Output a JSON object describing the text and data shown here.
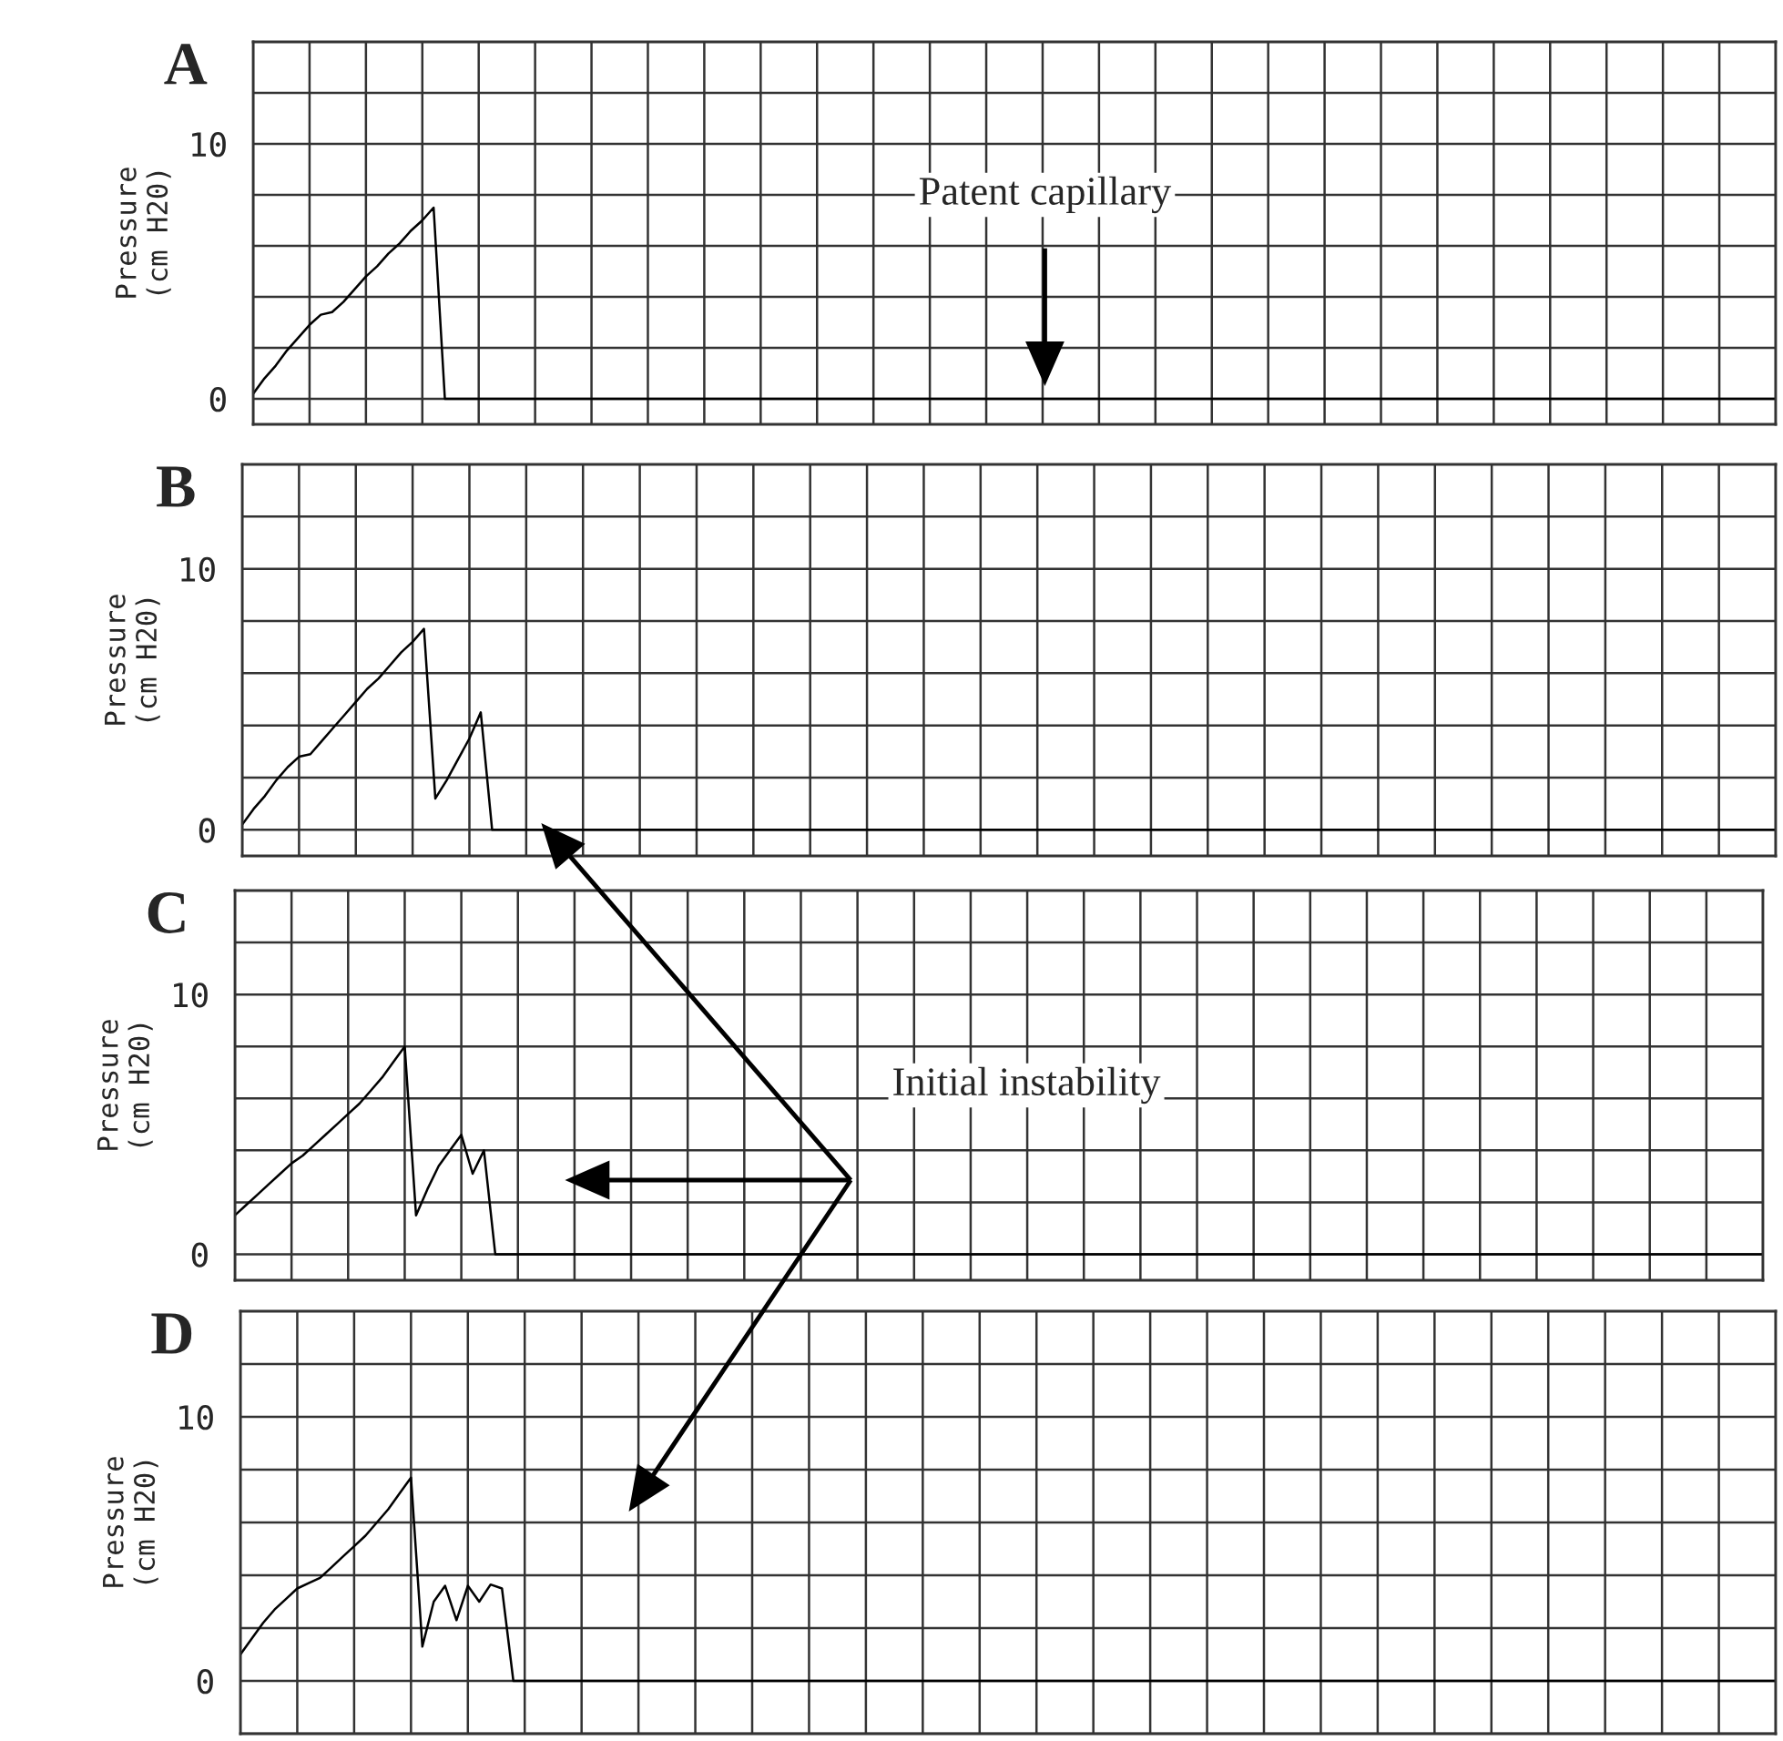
{
  "chart_data": [
    {
      "type": "line",
      "title": "A",
      "ylabel": "Pressure\n(cm H20)",
      "categories": [
        null,
        null,
        null,
        null,
        null,
        null,
        null,
        null,
        null,
        null,
        null,
        null,
        null,
        null,
        null,
        null,
        null,
        null,
        null,
        null,
        null,
        null,
        null,
        null,
        null,
        null,
        null,
        null,
        null,
        null,
        null,
        null,
        null,
        null,
        null,
        null,
        null,
        null,
        null,
        null,
        null,
        null,
        null,
        null,
        null,
        null,
        null,
        null,
        null,
        null,
        null,
        null,
        null,
        null,
        null,
        null,
        null,
        null,
        null,
        null,
        null,
        null,
        null,
        null,
        null,
        null,
        null,
        null,
        null,
        null,
        null,
        null,
        null,
        null,
        null,
        null,
        null,
        null,
        null,
        null,
        null,
        null,
        null,
        null,
        null,
        null,
        null,
        null,
        null,
        null,
        null,
        null,
        null,
        null,
        null,
        null,
        null,
        null,
        null,
        null,
        null,
        null,
        null,
        null,
        null,
        null,
        null,
        null,
        null,
        null,
        null,
        null,
        null,
        null,
        null,
        null,
        null,
        null,
        null,
        null,
        null,
        null,
        null,
        null,
        null,
        null,
        null,
        null,
        null,
        null,
        null,
        null,
        null,
        null,
        null,
        null
      ],
      "series": [
        {
          "color": "#000000",
          "values": [
            0.2,
            0.8,
            1.3,
            1.9,
            2.4,
            2.9,
            3.3,
            3.4,
            3.8,
            4.3,
            4.8,
            5.2,
            5.7,
            6.1,
            6.6,
            7.0,
            7.5,
            0,
            0,
            0,
            0,
            0,
            0,
            0,
            0,
            0,
            0,
            0,
            0,
            0,
            0,
            0,
            0,
            0,
            0,
            0,
            0,
            0,
            0,
            0,
            0,
            0,
            0,
            0,
            0,
            0,
            0,
            0,
            0,
            0,
            0,
            0,
            0,
            0,
            0,
            0,
            0,
            0,
            0,
            0,
            0,
            0,
            0,
            0,
            0,
            0,
            0,
            0,
            0,
            0,
            0,
            0,
            0,
            0,
            0,
            0,
            0,
            0,
            0,
            0,
            0,
            0,
            0,
            0,
            0,
            0,
            0,
            0,
            0,
            0,
            0,
            0,
            0,
            0,
            0,
            0,
            0,
            0,
            0,
            0,
            0,
            0,
            0,
            0,
            0,
            0,
            0,
            0,
            0,
            0,
            0,
            0,
            0,
            0,
            0,
            0,
            0,
            0,
            0,
            0,
            0,
            0,
            0,
            0,
            0,
            0,
            0,
            0,
            0,
            0,
            0,
            0,
            0,
            0,
            0,
            0
          ]
        }
      ],
      "annotations": [
        "Patent capillary"
      ],
      "ylim": [
        -1,
        14
      ],
      "grid": true,
      "yticks": [
        0,
        {
          "value": 2,
          "label": null
        },
        {
          "value": 4,
          "label": null
        },
        {
          "value": 6,
          "label": null
        },
        {
          "value": 8,
          "label": null
        },
        10,
        {
          "value": 12,
          "label": null
        }
      ]
    },
    {
      "type": "line",
      "title": "B",
      "ylabel": "Pressure\n(cm H20)",
      "categories": [
        null,
        null,
        null,
        null,
        null,
        null,
        null,
        null,
        null,
        null,
        null,
        null,
        null,
        null,
        null,
        null,
        null,
        null,
        null,
        null,
        null,
        null,
        null,
        null,
        null,
        null,
        null,
        null,
        null,
        null,
        null,
        null,
        null,
        null,
        null,
        null,
        null,
        null,
        null,
        null,
        null,
        null,
        null,
        null,
        null,
        null,
        null,
        null,
        null,
        null,
        null,
        null,
        null,
        null,
        null,
        null,
        null,
        null,
        null,
        null,
        null,
        null,
        null,
        null,
        null,
        null,
        null,
        null,
        null,
        null,
        null,
        null,
        null,
        null,
        null,
        null,
        null,
        null,
        null,
        null,
        null,
        null,
        null,
        null,
        null,
        null,
        null,
        null,
        null,
        null,
        null,
        null,
        null,
        null,
        null,
        null,
        null,
        null,
        null,
        null,
        null,
        null,
        null,
        null,
        null,
        null,
        null,
        null,
        null,
        null,
        null,
        null,
        null,
        null,
        null,
        null,
        null,
        null,
        null,
        null,
        null,
        null,
        null,
        null,
        null,
        null,
        null,
        null,
        null,
        null,
        null,
        null,
        null,
        null,
        null,
        null
      ],
      "series": [
        {
          "color": "#000000",
          "values": [
            0.2,
            0.8,
            1.3,
            1.9,
            2.4,
            2.8,
            2.9,
            3.4,
            3.9,
            4.4,
            4.9,
            5.4,
            5.8,
            6.3,
            6.8,
            7.2,
            7.7,
            1.2,
            1.9,
            2.7,
            3.5,
            4.5,
            0,
            0,
            0,
            0,
            0,
            0,
            0,
            0,
            0,
            0,
            0,
            0,
            0,
            0,
            0,
            0,
            0,
            0,
            0,
            0,
            0,
            0,
            0,
            0,
            0,
            0,
            0,
            0,
            0,
            0,
            0,
            0,
            0,
            0,
            0,
            0,
            0,
            0,
            0,
            0,
            0,
            0,
            0,
            0,
            0,
            0,
            0,
            0,
            0,
            0,
            0,
            0,
            0,
            0,
            0,
            0,
            0,
            0,
            0,
            0,
            0,
            0,
            0,
            0,
            0,
            0,
            0,
            0,
            0,
            0,
            0,
            0,
            0,
            0,
            0,
            0,
            0,
            0,
            0,
            0,
            0,
            0,
            0,
            0,
            0,
            0,
            0,
            0,
            0,
            0,
            0,
            0,
            0,
            0,
            0,
            0,
            0,
            0,
            0,
            0,
            0,
            0,
            0,
            0,
            0,
            0,
            0,
            0,
            0,
            0,
            0,
            0,
            0,
            0
          ]
        }
      ],
      "ylim": [
        -1,
        14
      ],
      "grid": true,
      "yticks": [
        0,
        {
          "value": 2,
          "label": null
        },
        {
          "value": 4,
          "label": null
        },
        {
          "value": 6,
          "label": null
        },
        {
          "value": 8,
          "label": null
        },
        10,
        {
          "value": 12,
          "label": null
        }
      ]
    },
    {
      "type": "line",
      "title": "C",
      "ylabel": "Pressure\n(cm H20)",
      "categories": [
        null,
        null,
        null,
        null,
        null,
        null,
        null,
        null,
        null,
        null,
        null,
        null,
        null,
        null,
        null,
        null,
        null,
        null,
        null,
        null,
        null,
        null,
        null,
        null,
        null,
        null,
        null,
        null,
        null,
        null,
        null,
        null,
        null,
        null,
        null,
        null,
        null,
        null,
        null,
        null,
        null,
        null,
        null,
        null,
        null,
        null,
        null,
        null,
        null,
        null,
        null,
        null,
        null,
        null,
        null,
        null,
        null,
        null,
        null,
        null,
        null,
        null,
        null,
        null,
        null,
        null,
        null,
        null,
        null,
        null,
        null,
        null,
        null,
        null,
        null,
        null,
        null,
        null,
        null,
        null,
        null,
        null,
        null,
        null,
        null,
        null,
        null,
        null,
        null,
        null,
        null,
        null,
        null,
        null,
        null,
        null,
        null,
        null,
        null,
        null,
        null,
        null,
        null,
        null,
        null,
        null,
        null,
        null,
        null,
        null,
        null,
        null,
        null,
        null,
        null,
        null,
        null,
        null,
        null,
        null,
        null,
        null,
        null,
        null,
        null,
        null,
        null,
        null,
        null,
        null,
        null,
        null,
        null,
        null,
        null,
        null
      ],
      "series": [
        {
          "color": "#000000",
          "values": [
            1.5,
            1.9,
            2.3,
            2.7,
            3.1,
            3.5,
            3.8,
            4.2,
            4.6,
            5.0,
            5.4,
            5.8,
            6.3,
            6.8,
            7.4,
            8.0,
            1.5,
            2.5,
            3.4,
            4.0,
            4.6,
            3.1,
            4.0,
            0,
            0,
            0,
            0,
            0,
            0,
            0,
            0,
            0,
            0,
            0,
            0,
            0,
            0,
            0,
            0,
            0,
            0,
            0,
            0,
            0,
            0,
            0,
            0,
            0,
            0,
            0,
            0,
            0,
            0,
            0,
            0,
            0,
            0,
            0,
            0,
            0,
            0,
            0,
            0,
            0,
            0,
            0,
            0,
            0,
            0,
            0,
            0,
            0,
            0,
            0,
            0,
            0,
            0,
            0,
            0,
            0,
            0,
            0,
            0,
            0,
            0,
            0,
            0,
            0,
            0,
            0,
            0,
            0,
            0,
            0,
            0,
            0,
            0,
            0,
            0,
            0,
            0,
            0,
            0,
            0,
            0,
            0,
            0,
            0,
            0,
            0,
            0,
            0,
            0,
            0,
            0,
            0,
            0,
            0,
            0,
            0,
            0,
            0,
            0,
            0,
            0,
            0,
            0,
            0,
            0,
            0,
            0,
            0,
            0,
            0,
            0,
            0
          ]
        }
      ],
      "annotations": [
        "Initial instability"
      ],
      "ylim": [
        -1,
        14
      ],
      "grid": true,
      "yticks": [
        0,
        {
          "value": 2,
          "label": null
        },
        {
          "value": 4,
          "label": null
        },
        {
          "value": 6,
          "label": null
        },
        {
          "value": 8,
          "label": null
        },
        10,
        {
          "value": 12,
          "label": null
        }
      ]
    },
    {
      "type": "line",
      "title": "D",
      "ylabel": "Pressure\n(cm H20)",
      "categories": [
        null,
        null,
        null,
        null,
        null,
        null,
        null,
        null,
        null,
        null,
        null,
        null,
        null,
        null,
        null,
        null,
        null,
        null,
        null,
        null,
        null,
        null,
        null,
        null,
        null,
        null,
        null,
        null,
        null,
        null,
        null,
        null,
        null,
        null,
        null,
        null,
        null,
        null,
        null,
        null,
        null,
        null,
        null,
        null,
        null,
        null,
        null,
        null,
        null,
        null,
        null,
        null,
        null,
        null,
        null,
        null,
        null,
        null,
        null,
        null,
        null,
        null,
        null,
        null,
        null,
        null,
        null,
        null,
        null,
        null,
        null,
        null,
        null,
        null,
        null,
        null,
        null,
        null,
        null,
        null,
        null,
        null,
        null,
        null,
        null,
        null,
        null,
        null,
        null,
        null,
        null,
        null,
        null,
        null,
        null,
        null,
        null,
        null,
        null,
        null,
        null,
        null,
        null,
        null,
        null,
        null,
        null,
        null,
        null,
        null,
        null,
        null,
        null,
        null,
        null,
        null,
        null,
        null,
        null,
        null,
        null,
        null,
        null,
        null,
        null,
        null,
        null,
        null,
        null,
        null,
        null,
        null,
        null,
        null,
        null,
        null
      ],
      "series": [
        {
          "color": "#000000",
          "values": [
            1.0,
            1.6,
            2.2,
            2.7,
            3.1,
            3.5,
            3.7,
            3.9,
            4.3,
            4.7,
            5.1,
            5.5,
            6.0,
            6.5,
            7.1,
            7.7,
            1.3,
            3.0,
            3.6,
            2.3,
            3.6,
            3.0,
            3.65,
            3.5,
            0,
            0,
            0,
            0,
            0,
            0,
            0,
            0,
            0,
            0,
            0,
            0,
            0,
            0,
            0,
            0,
            0,
            0,
            0,
            0,
            0,
            0,
            0,
            0,
            0,
            0,
            0,
            0,
            0,
            0,
            0,
            0,
            0,
            0,
            0,
            0,
            0,
            0,
            0,
            0,
            0,
            0,
            0,
            0,
            0,
            0,
            0,
            0,
            0,
            0,
            0,
            0,
            0,
            0,
            0,
            0,
            0,
            0,
            0,
            0,
            0,
            0,
            0,
            0,
            0,
            0,
            0,
            0,
            0,
            0,
            0,
            0,
            0,
            0,
            0,
            0,
            0,
            0,
            0,
            0,
            0,
            0,
            0,
            0,
            0,
            0,
            0,
            0,
            0,
            0,
            0,
            0,
            0,
            0,
            0,
            0,
            0,
            0,
            0,
            0,
            0,
            0,
            0,
            0,
            0,
            0,
            0,
            0,
            0,
            0,
            0,
            0
          ]
        }
      ],
      "ylim": [
        -2,
        14
      ],
      "grid": true,
      "yticks": [
        {
          "value": -2,
          "label": null
        },
        0,
        {
          "value": 2,
          "label": null
        },
        {
          "value": 4,
          "label": null
        },
        {
          "value": 6,
          "label": null
        },
        {
          "value": 8,
          "label": null
        },
        10,
        {
          "value": 12,
          "label": null
        }
      ]
    }
  ]
}
